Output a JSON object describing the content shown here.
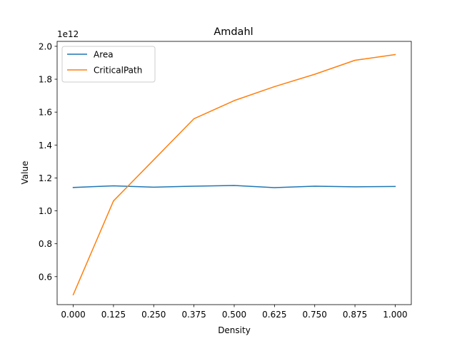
{
  "chart_data": {
    "type": "line",
    "title": "Amdahl",
    "xlabel": "Density",
    "ylabel": "Value",
    "y_offset_label": "1e12",
    "xlim": [
      -0.05,
      1.05
    ],
    "ylim": [
      0.43,
      2.03
    ],
    "x_ticks": [
      0.0,
      0.125,
      0.25,
      0.375,
      0.5,
      0.625,
      0.75,
      0.875,
      1.0
    ],
    "x_tick_labels": [
      "0.000",
      "0.125",
      "0.250",
      "0.375",
      "0.500",
      "0.625",
      "0.750",
      "0.875",
      "1.000"
    ],
    "y_ticks": [
      0.6,
      0.8,
      1.0,
      1.2,
      1.4,
      1.6,
      1.8,
      2.0
    ],
    "y_tick_labels": [
      "0.6",
      "0.8",
      "1.0",
      "1.2",
      "1.4",
      "1.6",
      "1.8",
      "2.0"
    ],
    "x": [
      0.0,
      0.125,
      0.25,
      0.375,
      0.5,
      0.625,
      0.75,
      0.875,
      1.0
    ],
    "series": [
      {
        "name": "Area",
        "color": "#1f77b4",
        "values": [
          1.142,
          1.152,
          1.144,
          1.15,
          1.154,
          1.141,
          1.15,
          1.146,
          1.148
        ]
      },
      {
        "name": "CriticalPath",
        "color": "#ff7f0e",
        "values": [
          0.49,
          1.06,
          1.31,
          1.56,
          1.67,
          1.755,
          1.83,
          1.915,
          1.95
        ]
      }
    ],
    "legend_position": "upper-left",
    "grid": false
  }
}
